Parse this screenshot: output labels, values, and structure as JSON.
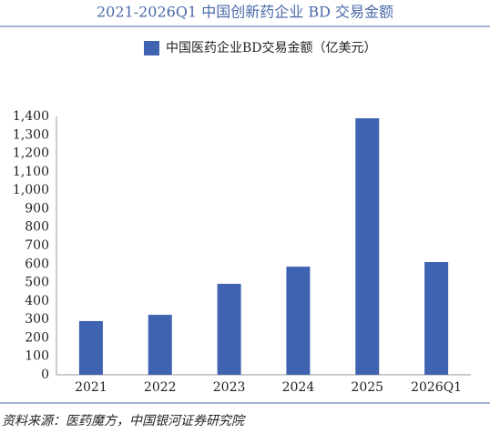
{
  "chart_data": {
    "type": "bar",
    "title": "2021-2026Q1 中国创新药企业 BD 交易金额",
    "legend_label": "中国医药企业BD交易金额（亿美元）",
    "source": "资料来源：医药魔方，中国银河证券研究院",
    "categories": [
      "2021",
      "2022",
      "2023",
      "2024",
      "2025",
      "2026Q1"
    ],
    "values": [
      291,
      325,
      493,
      586,
      1390,
      611
    ],
    "color": "#3f63b0",
    "ylim": [
      0,
      1400
    ],
    "yticks": [
      0,
      100,
      200,
      300,
      400,
      500,
      600,
      700,
      800,
      900,
      {
        "value": 1000,
        "label": "1,000"
      },
      {
        "value": 1100,
        "label": "1,100"
      },
      {
        "value": 1200,
        "label": "1,200"
      },
      {
        "value": 1300,
        "label": "1,300"
      },
      {
        "value": 1400,
        "label": "1,400"
      }
    ],
    "grid": false
  }
}
